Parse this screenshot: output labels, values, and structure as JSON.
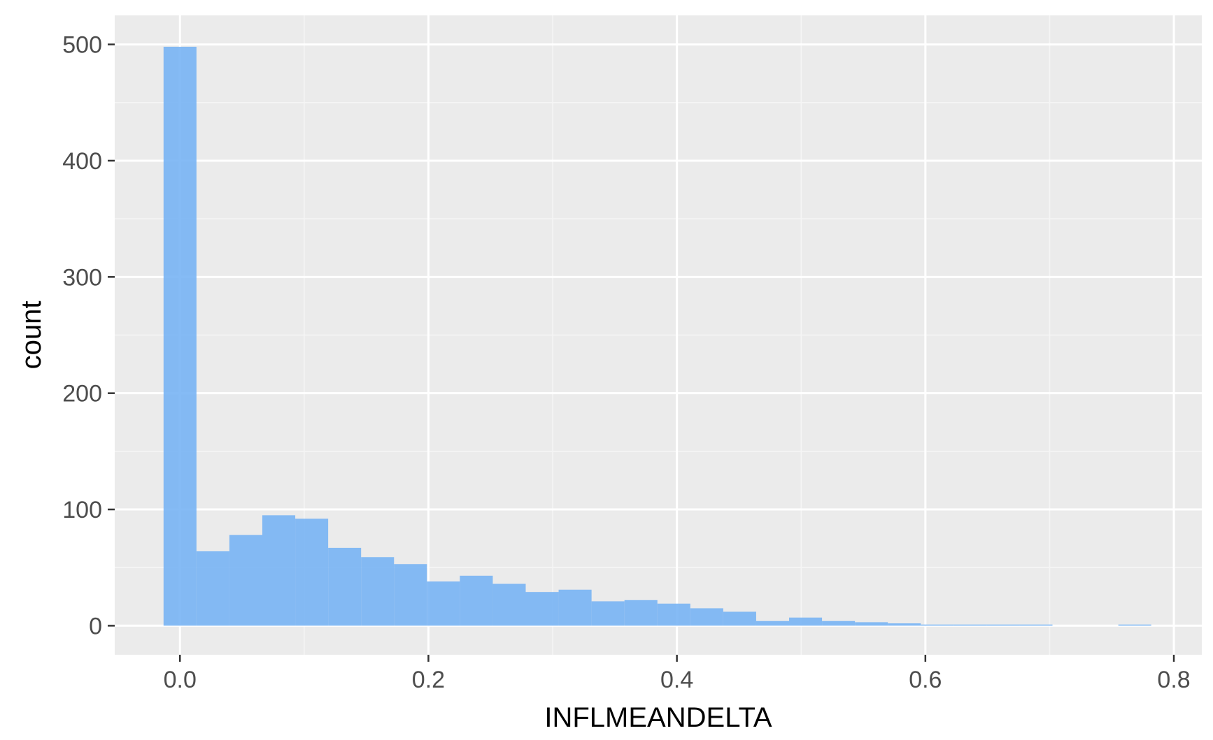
{
  "chart_data": {
    "type": "bar",
    "subtype": "histogram",
    "title": "",
    "xlabel": "INFLMEANDELTA",
    "ylabel": "count",
    "xlim": [
      -0.0525,
      0.8225
    ],
    "ylim": [
      -25,
      525
    ],
    "x_ticks": [
      0.0,
      0.2,
      0.4,
      0.6,
      0.8
    ],
    "x_tick_labels": [
      "0.0",
      "0.2",
      "0.4",
      "0.6",
      "0.8"
    ],
    "y_ticks": [
      0,
      100,
      200,
      300,
      400,
      500
    ],
    "y_tick_labels": [
      "0",
      "100",
      "200",
      "300",
      "400",
      "500"
    ],
    "bin_width": 0.0265,
    "bins_start": -0.0132,
    "values": [
      498,
      64,
      78,
      95,
      92,
      67,
      59,
      53,
      38,
      43,
      36,
      29,
      31,
      21,
      22,
      19,
      15,
      12,
      4,
      7,
      4,
      3,
      2,
      1,
      1,
      1,
      1,
      0,
      0,
      1,
      0,
      0,
      1
    ],
    "grid": true,
    "legend": "none",
    "colors": {
      "bar_fill": "#78b4f4",
      "panel_background": "#ebebeb",
      "grid_major": "#ffffff",
      "grid_minor": "#f5f5f5",
      "tick_mark": "#333333",
      "tick_text": "#4d4d4d",
      "axis_title": "#000000"
    }
  }
}
